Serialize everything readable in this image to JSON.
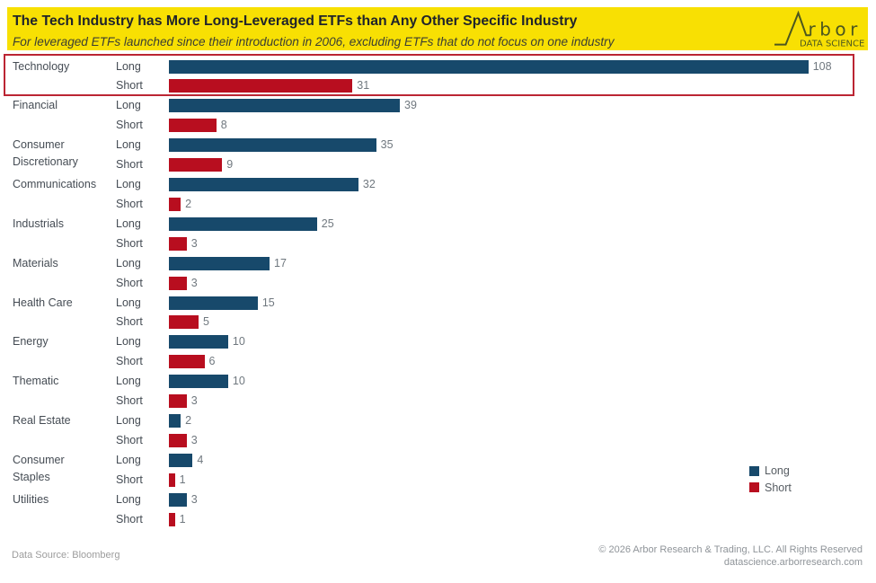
{
  "header": {
    "title": "The Tech Industry has More Long-Leveraged ETFs than Any Other Specific Industry",
    "subtitle": "For leveraged ETFs launched since their introduction in 2006, excluding ETFs that do not focus on one industry",
    "background_color": "#F8E003",
    "logo": {
      "brand": "Arbor",
      "brand_text": "rbor",
      "tagline": "DATA SCIENCE",
      "color": "#4D5926"
    }
  },
  "chart_data": {
    "type": "bar",
    "orientation": "horizontal",
    "categories": [
      "Technology",
      "Financial",
      "Consumer Discretionary",
      "Communications",
      "Industrials",
      "Materials",
      "Health Care",
      "Energy",
      "Thematic",
      "Real Estate",
      "Consumer Staples",
      "Utilities"
    ],
    "row_labels": [
      "Long",
      "Short"
    ],
    "series": [
      {
        "name": "Long",
        "color": "#17496B",
        "values": [
          108,
          39,
          35,
          32,
          25,
          17,
          15,
          10,
          10,
          2,
          4,
          3
        ]
      },
      {
        "name": "Short",
        "color": "#B80E1F",
        "values": [
          31,
          8,
          9,
          2,
          3,
          3,
          5,
          6,
          3,
          3,
          1,
          1
        ]
      }
    ],
    "xlim": [
      0,
      117
    ],
    "grid": false,
    "value_labels": true,
    "legend": {
      "position": "right",
      "items": [
        {
          "label": "Long",
          "color": "#17496B"
        },
        {
          "label": "Short",
          "color": "#B80E1F"
        }
      ]
    },
    "highlight": {
      "category": "Technology",
      "border_color": "#BB2533"
    }
  },
  "footer": {
    "data_source": "Data Source: Bloomberg",
    "copyright": "© 2026 Arbor Research & Trading, LLC. All Rights Reserved",
    "website": "datascience.arborresearch.com"
  }
}
